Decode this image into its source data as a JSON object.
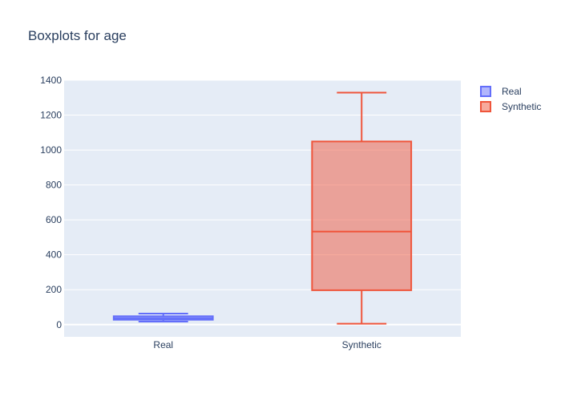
{
  "chart_data": {
    "type": "box",
    "title": "Boxplots for age",
    "categories": [
      "Real",
      "Synthetic"
    ],
    "ylim": [
      -70,
      1400
    ],
    "yticks": [
      0,
      200,
      400,
      600,
      800,
      1000,
      1200,
      1400
    ],
    "grid": true,
    "legend_position": "top-right",
    "series": [
      {
        "name": "Real",
        "category": "Real",
        "color": "#636efa",
        "min": 17,
        "q1": 28,
        "median": 37,
        "q3": 48,
        "max": 63
      },
      {
        "name": "Synthetic",
        "category": "Synthetic",
        "color": "#ef553b",
        "min": 5,
        "q1": 197,
        "median": 533,
        "q3": 1049,
        "max": 1329
      }
    ]
  }
}
